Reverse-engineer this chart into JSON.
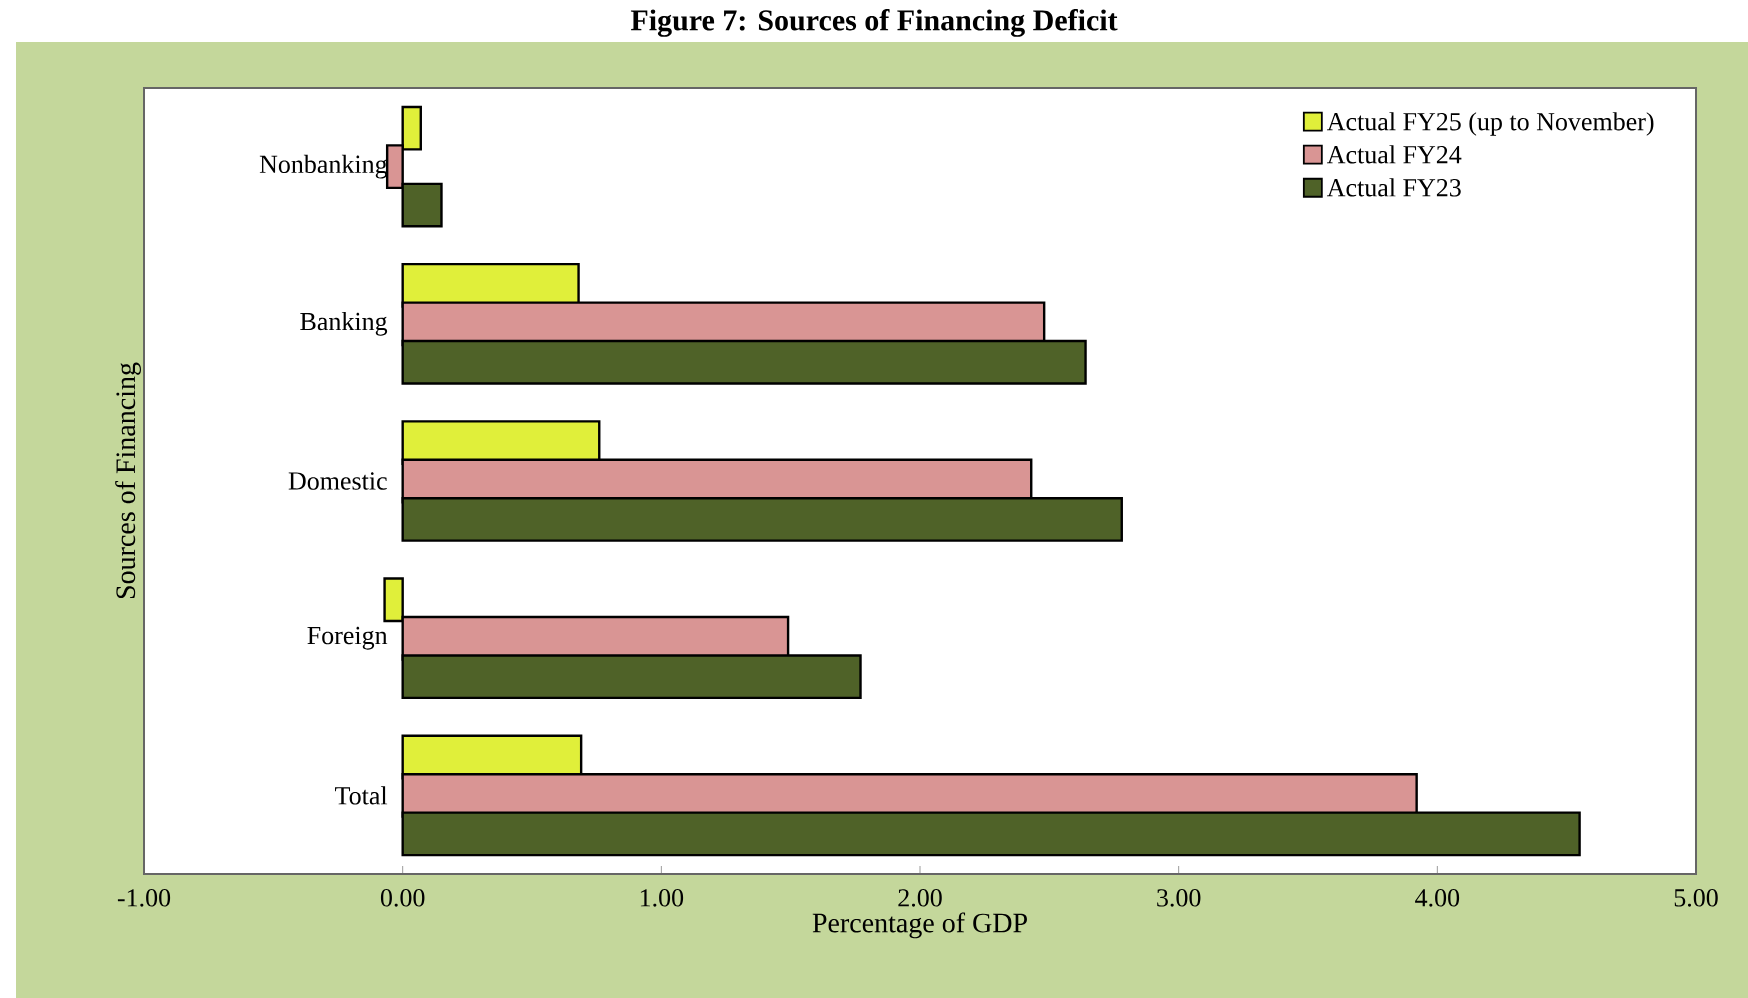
{
  "chart_data": {
    "type": "bar",
    "orientation": "horizontal",
    "title": "Figure 7: Sources of Financing Deficit",
    "xlabel": "Percentage of  GDP",
    "ylabel": "Sources of Financing",
    "categories": [
      "Nonbanking",
      "Banking",
      "Domestic",
      "Foreign",
      "Total"
    ],
    "series": [
      {
        "name": "Actual FY25 (up to November)",
        "color": "#e0ef3a",
        "values": [
          0.07,
          0.68,
          0.76,
          -0.07,
          0.69
        ]
      },
      {
        "name": "Actual FY24",
        "color": "#d99594",
        "values": [
          -0.06,
          2.48,
          2.43,
          1.49,
          3.92
        ]
      },
      {
        "name": "Actual FY23",
        "color": "#4f6228",
        "values": [
          0.15,
          2.64,
          2.78,
          1.77,
          4.55
        ]
      }
    ],
    "xlim": [
      -1,
      5
    ],
    "xticks": [
      {
        "value": -1,
        "label": "-1.00"
      },
      {
        "value": 0,
        "label": "0.00"
      },
      {
        "value": 1,
        "label": "1.00"
      },
      {
        "value": 2,
        "label": "2.00"
      },
      {
        "value": 3,
        "label": "3.00"
      },
      {
        "value": 4,
        "label": "4.00"
      },
      {
        "value": 5,
        "label": "5.00"
      }
    ],
    "legend": "top right"
  }
}
